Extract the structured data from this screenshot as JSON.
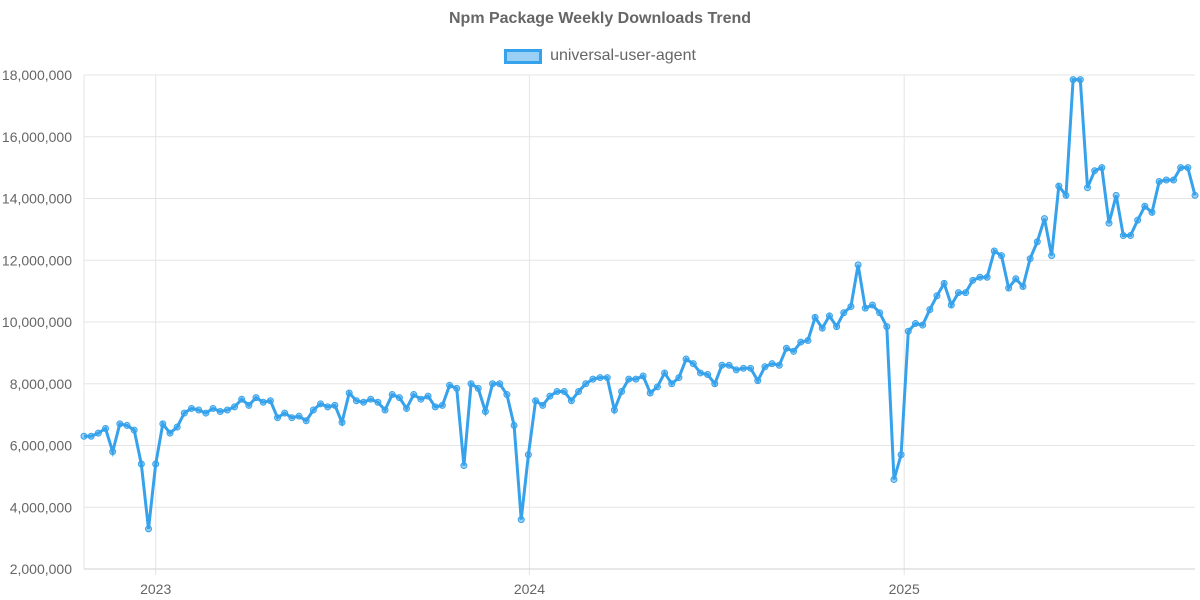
{
  "chart_data": {
    "type": "line",
    "title": "Npm Package Weekly Downloads Trend",
    "legend_position": "top",
    "grid": true,
    "color": "#36a2eb",
    "ylim": [
      2000000,
      18000000
    ],
    "y_ticks": [
      "2,000,000",
      "4,000,000",
      "6,000,000",
      "8,000,000",
      "10,000,000",
      "12,000,000",
      "14,000,000",
      "16,000,000",
      "18,000,000"
    ],
    "x_ticks": [
      "2023",
      "2024",
      "2025"
    ],
    "series": [
      {
        "name": "universal-user-agent",
        "x": [
          "2022-10-23",
          "2022-10-30",
          "2022-11-06",
          "2022-11-13",
          "2022-11-20",
          "2022-11-27",
          "2022-12-04",
          "2022-12-11",
          "2022-12-18",
          "2022-12-25",
          "2023-01-01",
          "2023-01-08",
          "2023-01-15",
          "2023-01-22",
          "2023-01-29",
          "2023-02-05",
          "2023-02-12",
          "2023-02-19",
          "2023-02-26",
          "2023-03-05",
          "2023-03-12",
          "2023-03-19",
          "2023-03-26",
          "2023-04-02",
          "2023-04-09",
          "2023-04-16",
          "2023-04-23",
          "2023-04-30",
          "2023-05-07",
          "2023-05-14",
          "2023-05-21",
          "2023-05-28",
          "2023-06-04",
          "2023-06-11",
          "2023-06-18",
          "2023-06-25",
          "2023-07-02",
          "2023-07-09",
          "2023-07-16",
          "2023-07-23",
          "2023-07-30",
          "2023-08-06",
          "2023-08-13",
          "2023-08-20",
          "2023-08-27",
          "2023-09-03",
          "2023-09-10",
          "2023-09-17",
          "2023-09-24",
          "2023-10-01",
          "2023-10-08",
          "2023-10-15",
          "2023-10-22",
          "2023-10-29",
          "2023-11-05",
          "2023-11-12",
          "2023-11-19",
          "2023-11-26",
          "2023-12-03",
          "2023-12-10",
          "2023-12-17",
          "2023-12-24",
          "2023-12-31",
          "2024-01-07",
          "2024-01-14",
          "2024-01-21",
          "2024-01-28",
          "2024-02-04",
          "2024-02-11",
          "2024-02-18",
          "2024-02-25",
          "2024-03-03",
          "2024-03-10",
          "2024-03-17",
          "2024-03-24",
          "2024-03-31",
          "2024-04-07",
          "2024-04-14",
          "2024-04-21",
          "2024-04-28",
          "2024-05-05",
          "2024-05-12",
          "2024-05-19",
          "2024-05-26",
          "2024-06-02",
          "2024-06-09",
          "2024-06-16",
          "2024-06-23",
          "2024-06-30",
          "2024-07-07",
          "2024-07-14",
          "2024-07-21",
          "2024-07-28",
          "2024-08-04",
          "2024-08-11",
          "2024-08-18",
          "2024-08-25",
          "2024-09-01",
          "2024-09-08",
          "2024-09-15",
          "2024-09-22",
          "2024-09-29",
          "2024-10-06",
          "2024-10-13",
          "2024-10-20",
          "2024-10-27",
          "2024-11-03",
          "2024-11-10",
          "2024-11-17",
          "2024-11-24",
          "2024-12-01",
          "2024-12-08",
          "2024-12-15",
          "2024-12-22",
          "2024-12-29",
          "2025-01-05",
          "2025-01-12",
          "2025-01-19",
          "2025-01-26",
          "2025-02-02",
          "2025-02-09",
          "2025-02-16",
          "2025-02-23",
          "2025-03-02",
          "2025-03-09",
          "2025-03-16",
          "2025-03-23",
          "2025-03-30",
          "2025-04-06",
          "2025-04-13",
          "2025-04-20",
          "2025-04-27",
          "2025-05-04",
          "2025-05-11",
          "2025-05-18",
          "2025-05-25",
          "2025-06-01",
          "2025-06-08",
          "2025-06-15",
          "2025-06-22",
          "2025-06-29",
          "2025-07-06",
          "2025-07-13",
          "2025-07-20",
          "2025-07-27",
          "2025-08-03",
          "2025-08-10",
          "2025-08-17",
          "2025-08-24",
          "2025-08-31",
          "2025-09-07",
          "2025-09-14",
          "2025-09-21",
          "2025-09-28",
          "2025-10-05",
          "2025-10-12"
        ],
        "values": [
          6300000,
          6300000,
          6400000,
          6550000,
          5800000,
          6700000,
          6650000,
          6500000,
          5400000,
          3300000,
          5400000,
          6700000,
          6400000,
          6600000,
          7050000,
          7200000,
          7150000,
          7050000,
          7200000,
          7100000,
          7150000,
          7250000,
          7500000,
          7300000,
          7550000,
          7400000,
          7450000,
          6900000,
          7050000,
          6900000,
          6950000,
          6800000,
          7150000,
          7350000,
          7250000,
          7300000,
          6750000,
          7700000,
          7450000,
          7400000,
          7500000,
          7400000,
          7150000,
          7650000,
          7550000,
          7200000,
          7650000,
          7500000,
          7600000,
          7250000,
          7300000,
          7950000,
          7850000,
          5350000,
          8000000,
          7850000,
          7100000,
          8000000,
          8000000,
          7650000,
          6650000,
          3600000,
          5700000,
          7450000,
          7300000,
          7600000,
          7750000,
          7750000,
          7450000,
          7750000,
          8000000,
          8150000,
          8200000,
          8200000,
          7150000,
          7750000,
          8150000,
          8150000,
          8250000,
          7700000,
          7900000,
          8350000,
          8000000,
          8200000,
          8800000,
          8650000,
          8350000,
          8300000,
          8000000,
          8600000,
          8600000,
          8450000,
          8500000,
          8500000,
          8100000,
          8550000,
          8650000,
          8600000,
          9150000,
          9050000,
          9350000,
          9400000,
          10150000,
          9800000,
          10200000,
          9850000,
          10300000,
          10500000,
          11850000,
          10450000,
          10550000,
          10300000,
          9850000,
          4900000,
          5700000,
          9700000,
          9950000,
          9900000,
          10400000,
          10850000,
          11250000,
          10550000,
          10950000,
          10950000,
          11350000,
          11450000,
          11450000,
          12300000,
          12150000,
          11100000,
          11400000,
          11150000,
          12050000,
          12600000,
          13350000,
          12150000,
          14400000,
          14100000,
          17850000,
          17850000,
          14350000,
          14900000,
          15000000,
          13200000,
          14100000,
          12800000,
          12800000,
          13300000,
          13750000,
          13550000,
          14550000,
          14600000,
          14600000,
          15000000,
          15000000,
          14100000
        ]
      }
    ]
  }
}
